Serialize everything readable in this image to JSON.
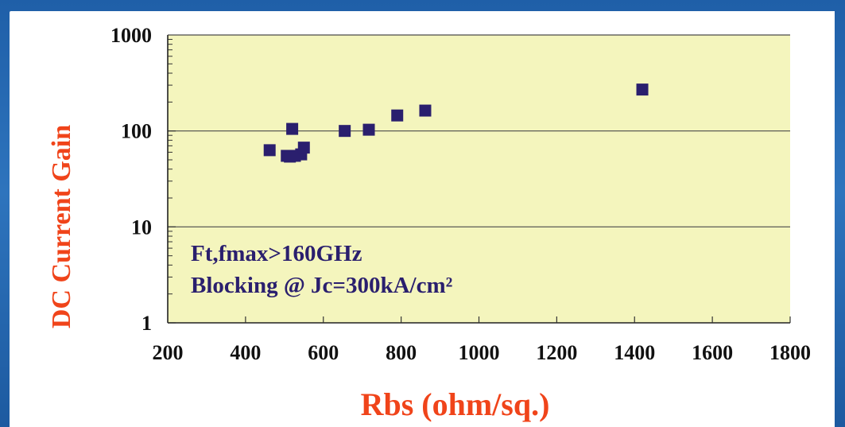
{
  "chart_data": {
    "type": "scatter",
    "title": "",
    "xlabel": "Rbs (ohm/sq.)",
    "ylabel": "DC Current Gain",
    "xlim": [
      200,
      1800
    ],
    "ylim": [
      1,
      1000
    ],
    "yscale": "log",
    "x_ticks": [
      "200",
      "400",
      "600",
      "800",
      "1000",
      "1200",
      "1400",
      "1600",
      "1800"
    ],
    "y_ticks": [
      "1",
      "10",
      "100",
      "1000"
    ],
    "grid": "horizontal major lines",
    "annotation_line1": "Ft,fmax>160GHz",
    "annotation_line2": "Blocking @ Jc=300kA/cm²",
    "marker_color": "#2a1f6e",
    "label_color": "#f0441a",
    "plot_bg": "#f4f5bd",
    "points": [
      {
        "x": 462,
        "y": 63
      },
      {
        "x": 506,
        "y": 55
      },
      {
        "x": 514,
        "y": 54
      },
      {
        "x": 520,
        "y": 105
      },
      {
        "x": 527,
        "y": 55
      },
      {
        "x": 543,
        "y": 57
      },
      {
        "x": 550,
        "y": 67
      },
      {
        "x": 655,
        "y": 100
      },
      {
        "x": 717,
        "y": 103
      },
      {
        "x": 790,
        "y": 145
      },
      {
        "x": 862,
        "y": 163
      },
      {
        "x": 1420,
        "y": 270
      }
    ]
  }
}
